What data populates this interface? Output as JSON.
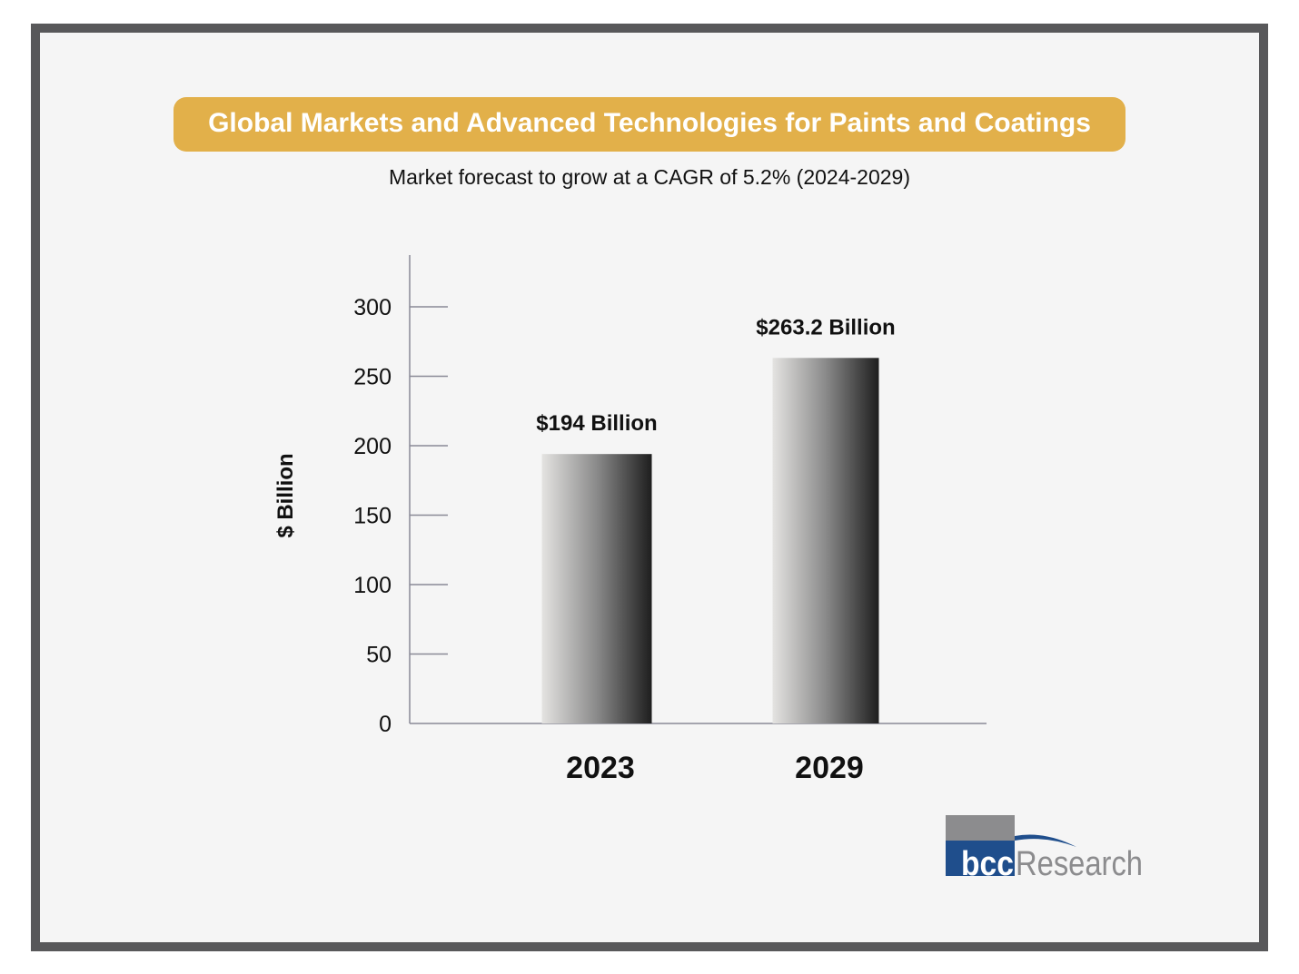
{
  "chart_data": {
    "type": "bar",
    "title": "Global Markets and Advanced Technologies for Paints and Coatings",
    "subtitle": "Market forecast to grow at a CAGR of 5.2% (2024-2029)",
    "xlabel": "",
    "ylabel": "$ Billion",
    "categories": [
      "2023",
      "2029"
    ],
    "values": [
      194,
      263.2
    ],
    "data_labels": [
      "$194 Billion",
      "$263.2 Billion"
    ],
    "ylim": [
      0,
      300
    ],
    "yticks": [
      0,
      50,
      100,
      150,
      200,
      250,
      300
    ],
    "grid": false,
    "colors": {
      "title_banner": "#e2b04a",
      "frame": "#58585a",
      "bar_light": "#e4e3e1",
      "bar_dark": "#1e1e1e"
    }
  },
  "logo": {
    "text": "bccResearch",
    "colors": {
      "gray": "#8c8c8e",
      "blue": "#1f4e8c"
    }
  }
}
